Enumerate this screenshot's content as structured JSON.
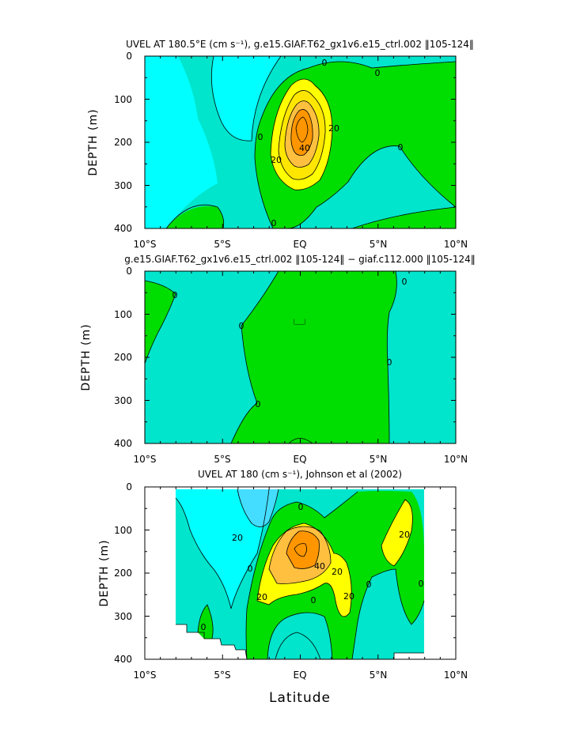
{
  "figure": {
    "xlabel": "Latitude"
  },
  "colors": {
    "background": "#ffffff",
    "levels": [
      "#00ffff",
      "#00e5cc",
      "#00dd00",
      "#ffff00",
      "#ffc800",
      "#ff9600"
    ],
    "contour": "#000000",
    "missing": "#ffffff"
  },
  "chart_data": [
    {
      "type": "contour",
      "title": "UVEL AT 180.5°E (cm s⁻¹), g.e15.GIAF.T62_gx1v6.e15_ctrl.002 ‖105-124‖",
      "ylabel": "DEPTH (m)",
      "xlim": [
        -10,
        10
      ],
      "ylim": [
        400,
        0
      ],
      "x_ticks": [
        "10°S",
        "5°S",
        "EQ",
        "5°N",
        "10°N"
      ],
      "y_ticks": [
        "0",
        "100",
        "200",
        "300",
        "400"
      ],
      "contour_labels": [
        "0",
        "0",
        "0",
        "0",
        "0",
        "20",
        "20",
        "40"
      ],
      "core": {
        "latitude": 0.3,
        "depth": 165,
        "max_value": 70
      }
    },
    {
      "type": "contour",
      "title": "g.e15.GIAF.T62_gx1v6.e15_ctrl.002 ‖105-124‖ − giaf.c112.000 ‖105-124‖",
      "ylabel": "DEPTH (m)",
      "xlim": [
        -10,
        10
      ],
      "ylim": [
        400,
        0
      ],
      "x_ticks": [
        "10°S",
        "5°S",
        "EQ",
        "5°N",
        "10°N"
      ],
      "y_ticks": [
        "0",
        "100",
        "200",
        "300",
        "400"
      ],
      "contour_labels": [
        "0",
        "0",
        "0",
        "0",
        "0"
      ]
    },
    {
      "type": "contour",
      "title": "UVEL AT 180 (cm s⁻¹), Johnson et al (2002)",
      "ylabel": "DEPTH (m)",
      "xlim": [
        -10,
        10
      ],
      "ylim": [
        400,
        0
      ],
      "x_ticks": [
        "10°S",
        "5°S",
        "EQ",
        "5°N",
        "10°N"
      ],
      "y_ticks": [
        "0",
        "100",
        "200",
        "300",
        "400"
      ],
      "data_lat_range": [
        -8,
        8
      ],
      "contour_labels": [
        "0",
        "0",
        "0",
        "0",
        "0",
        "0",
        "20",
        "20",
        "20",
        "20",
        "20",
        "40"
      ],
      "core": {
        "latitude": 0.5,
        "depth": 170,
        "max_value": 65
      }
    }
  ]
}
